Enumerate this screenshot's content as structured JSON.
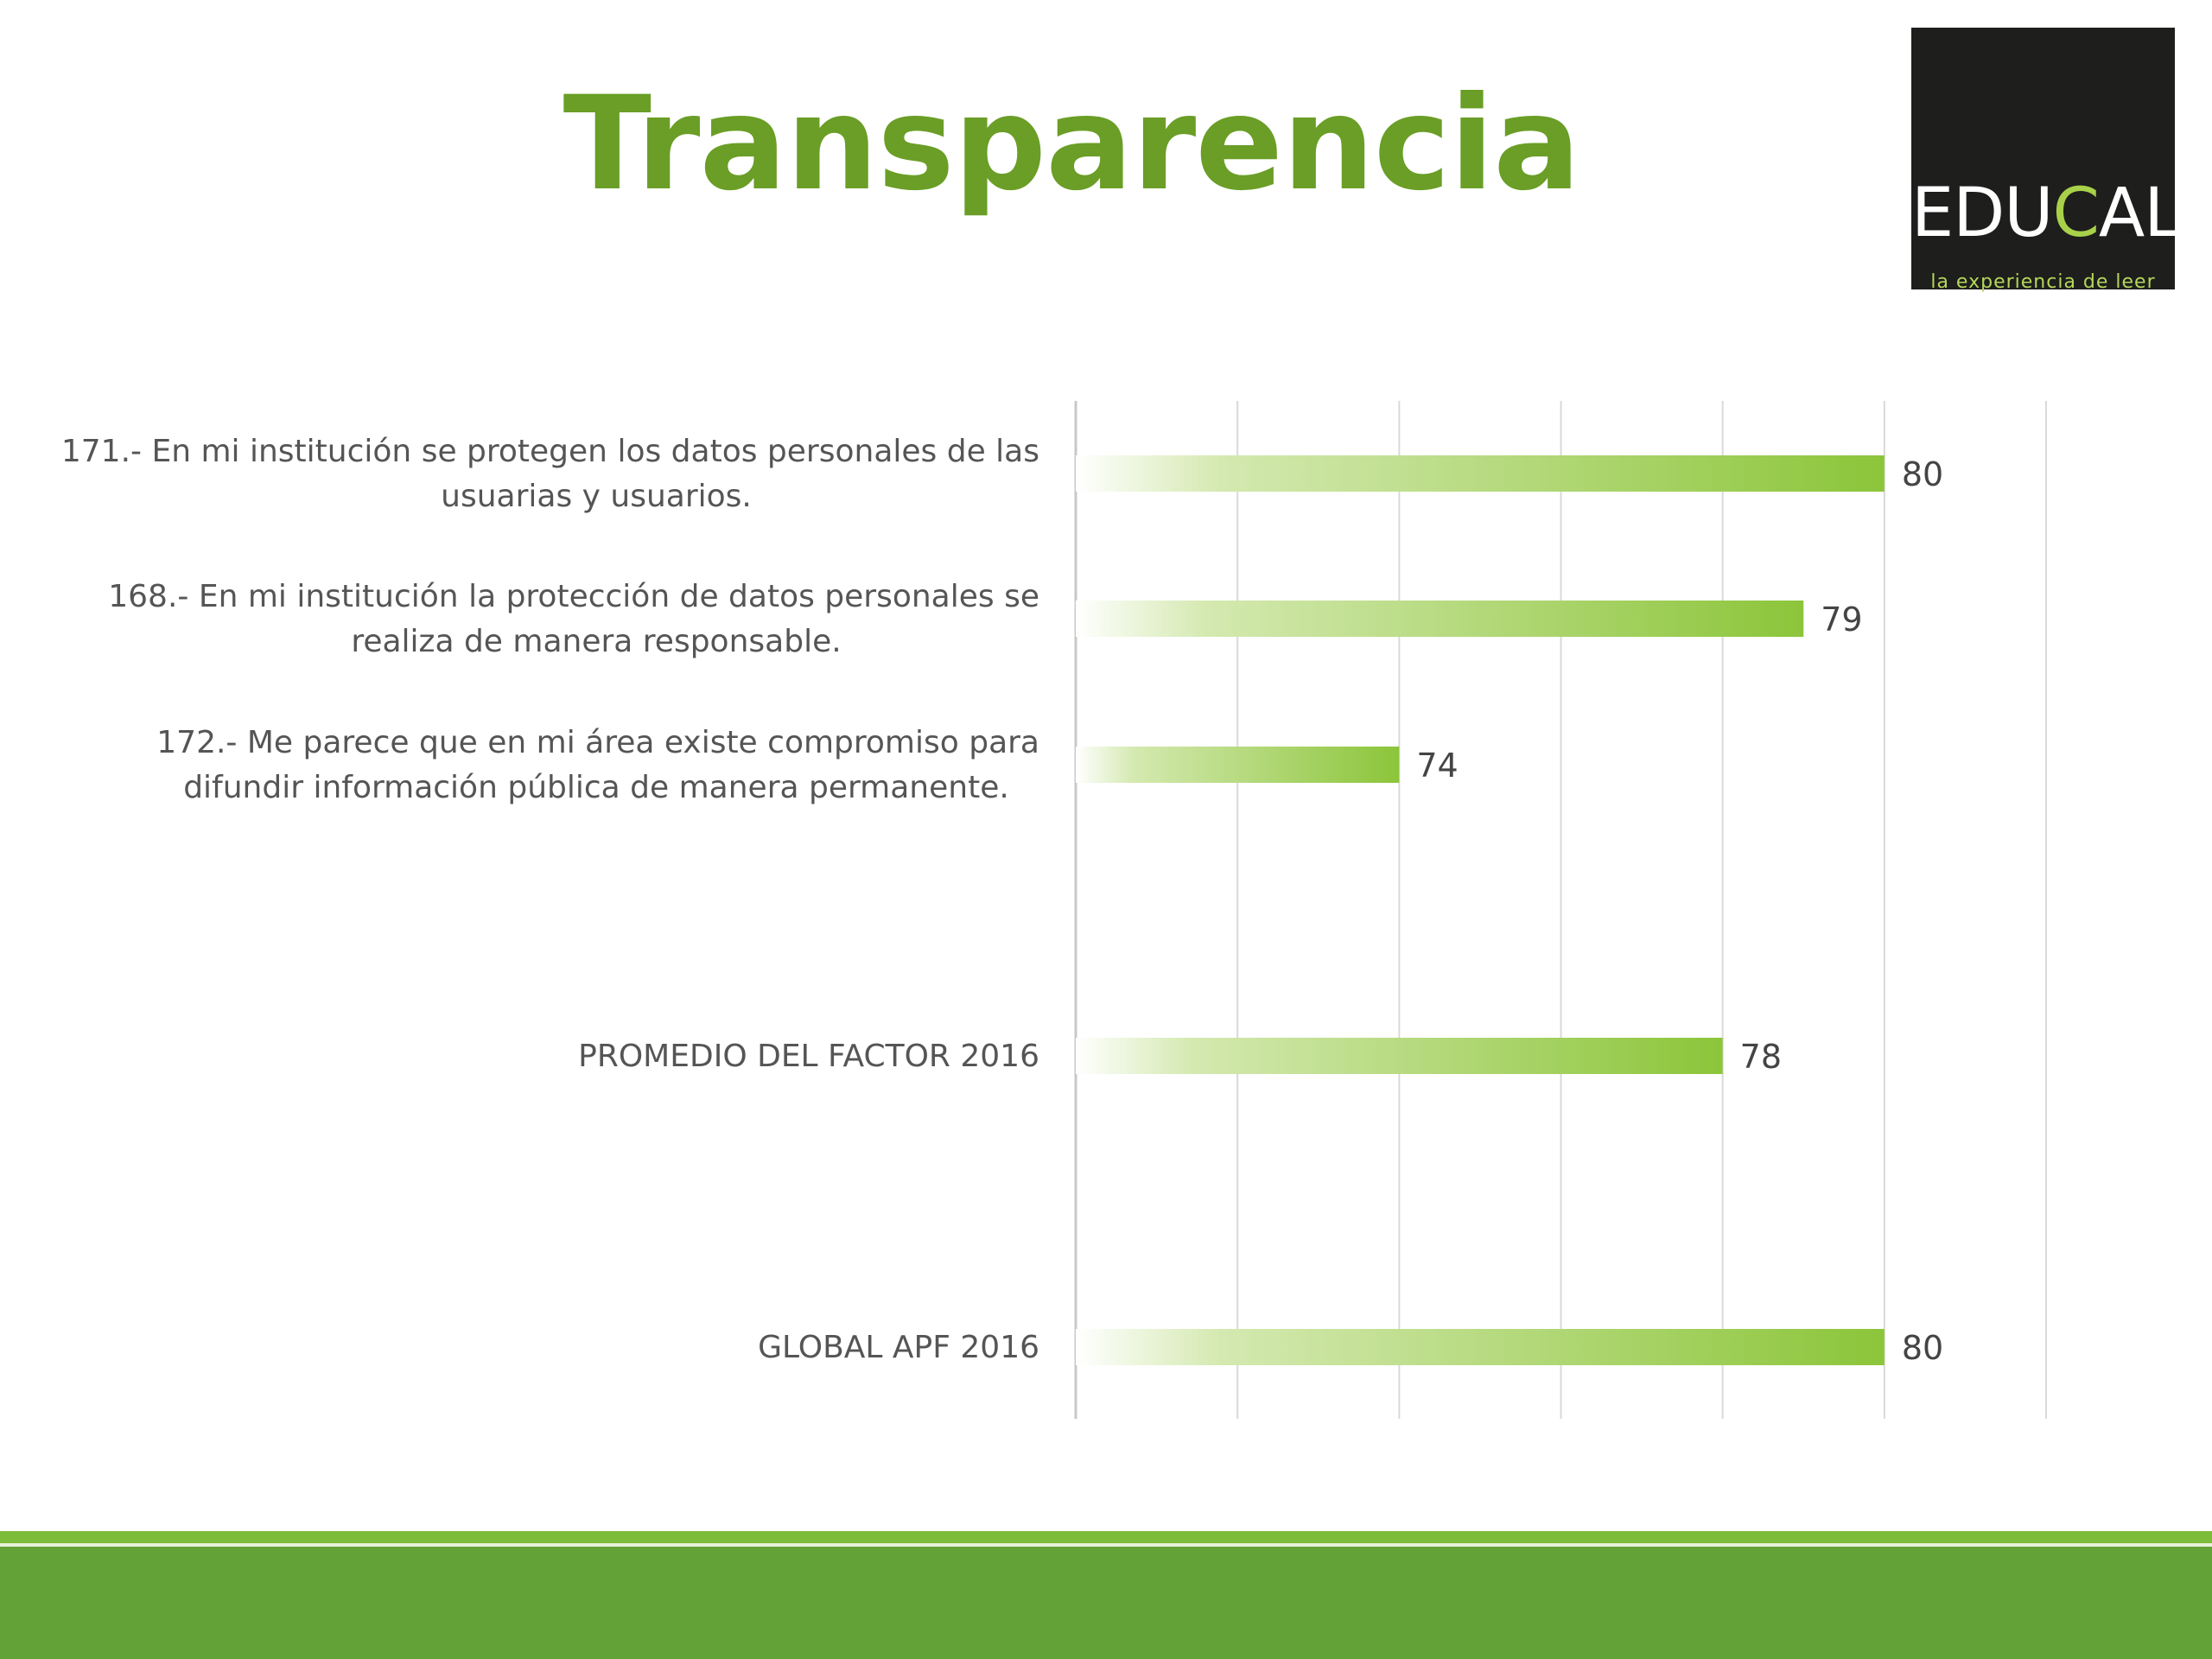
{
  "title": "Transparencia",
  "logo": {
    "name_part1": "EDU",
    "name_part2": "C",
    "name_part3": "AL",
    "tagline": "la experiencia de leer"
  },
  "colors": {
    "title": "#6a9e26",
    "bar_end": "#8cc53a",
    "bar_start": "#ffffff",
    "footer": "#62a237",
    "footer_stripe": "#7dbb3a",
    "logo_bg": "#1e1e1c"
  },
  "chart_data": {
    "type": "bar",
    "orientation": "horizontal",
    "categories": [
      [
        "171.- En mi institución se protegen los datos personales de las",
        "usuarias y usuarios."
      ],
      [
        "168.- En mi institución la protección de datos personales se",
        "realiza de manera responsable."
      ],
      [
        "172.- Me parece que en mi área existe compromiso para",
        "difundir información pública de manera permanente."
      ],
      [
        "PROMEDIO DEL FACTOR   2016"
      ],
      [
        "GLOBAL APF   2016"
      ]
    ],
    "values": [
      80,
      79,
      74,
      78,
      80
    ],
    "data_labels": [
      "80",
      "79",
      "74",
      "78",
      "80"
    ],
    "xlim": [
      70,
      82
    ],
    "grid": true,
    "axis_tick_labels_shown": false,
    "legend": "none"
  }
}
